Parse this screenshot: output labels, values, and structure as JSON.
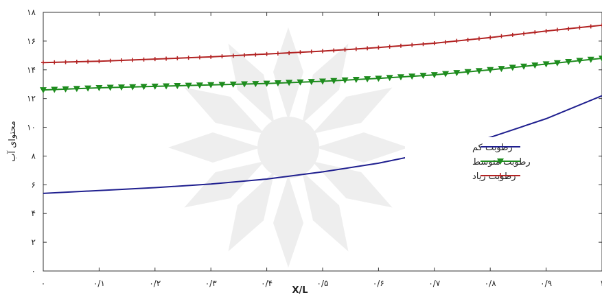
{
  "chart_data": {
    "type": "line",
    "xlabel": "X/L",
    "ylabel": "محتوای آب",
    "xlim": [
      0,
      1
    ],
    "ylim": [
      0,
      18
    ],
    "x_ticks": [
      0,
      0.1,
      0.2,
      0.3,
      0.4,
      0.5,
      0.6,
      0.7,
      0.8,
      0.9,
      1
    ],
    "x_tick_labels": [
      "۰",
      "۰/۱",
      "۰/۲",
      "۰/۳",
      "۰/۴",
      "۰/۵",
      "۰/۶",
      "۰/۷",
      "۰/۸",
      "۰/۹",
      "۱"
    ],
    "y_ticks": [
      0,
      2,
      4,
      6,
      8,
      10,
      12,
      14,
      16,
      18
    ],
    "y_tick_labels": [
      "۰",
      "۲",
      "۴",
      "۶",
      "۸",
      "۱۰",
      "۱۲",
      "۱۴",
      "۱۶",
      "۱۸"
    ],
    "grid": false,
    "legend_position": "right",
    "x": [
      0,
      0.1,
      0.2,
      0.3,
      0.4,
      0.5,
      0.6,
      0.7,
      0.8,
      0.9,
      1
    ],
    "series": [
      {
        "name": "رطوبت کم",
        "color": "#1f1f8f",
        "marker": "none",
        "values": [
          5.4,
          5.6,
          5.8,
          6.05,
          6.4,
          6.9,
          7.5,
          8.3,
          9.3,
          10.6,
          12.2
        ]
      },
      {
        "name": "رطوبت متوسط",
        "color": "#1e8c1e",
        "marker": "triangle-down",
        "values": [
          12.6,
          12.75,
          12.85,
          12.95,
          13.05,
          13.2,
          13.4,
          13.65,
          14.0,
          14.4,
          14.8
        ]
      },
      {
        "name": "رطوبت زیاد",
        "color": "#b22222",
        "marker": "plus",
        "values": [
          14.5,
          14.6,
          14.75,
          14.9,
          15.1,
          15.3,
          15.55,
          15.85,
          16.25,
          16.7,
          17.1
        ]
      }
    ]
  }
}
